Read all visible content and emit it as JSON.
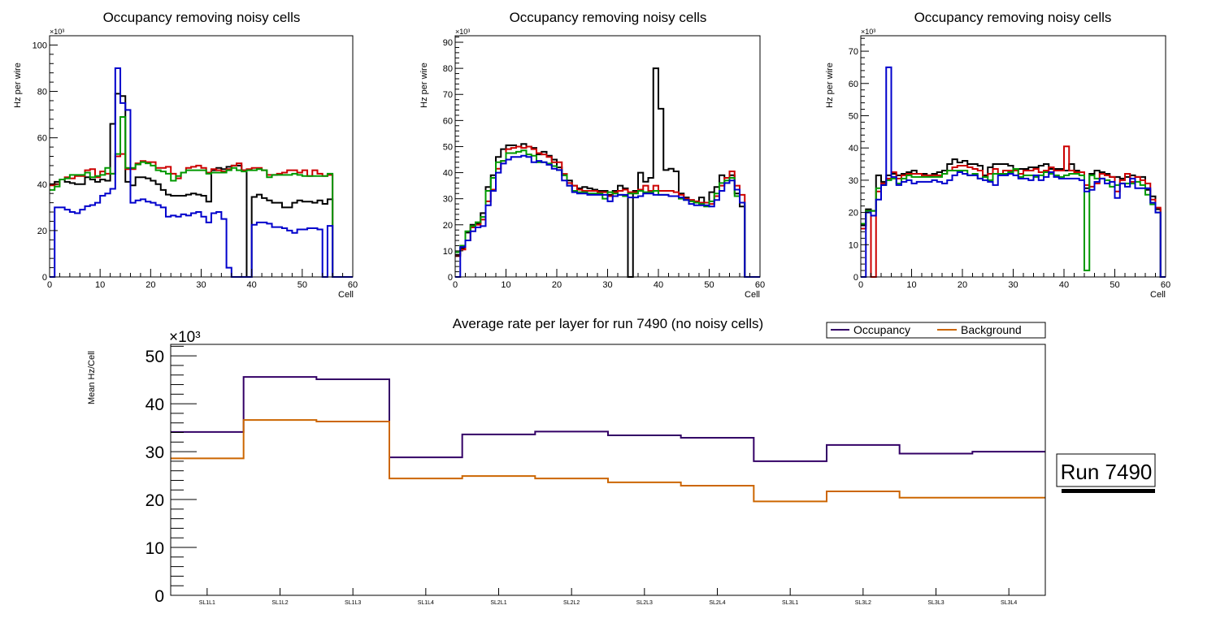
{
  "chart_data": [
    {
      "type": "histogram-step",
      "title": "Occupancy removing noisy cells",
      "xlabel": "Cell",
      "ylabel": "Hz per wire",
      "y_multiplier": "×10³",
      "xlim": [
        0,
        60
      ],
      "ylim": [
        0,
        104
      ],
      "xticks": [
        0,
        10,
        20,
        30,
        40,
        50,
        60
      ],
      "yticks": [
        0,
        20,
        40,
        60,
        80,
        100
      ],
      "series": [
        {
          "name": "black",
          "color": "#000000",
          "values": [
            40,
            41,
            42,
            41,
            40.5,
            40,
            40,
            43,
            42,
            41,
            42,
            41.5,
            66,
            79,
            78,
            41,
            39.5,
            43,
            43,
            42.5,
            41.5,
            40,
            37.5,
            35.5,
            35,
            35,
            35,
            35.5,
            36,
            35.5,
            35,
            32.5,
            46,
            47,
            46.5,
            47.5,
            48,
            48,
            46,
            0,
            34.5,
            35.5,
            34,
            33,
            32,
            32,
            30,
            30,
            32,
            33,
            32.5,
            32.5,
            32,
            33,
            31.5,
            33.5,
            0,
            0,
            0,
            0
          ]
        },
        {
          "name": "red",
          "color": "#cc0000",
          "values": [
            39.5,
            40,
            42,
            43,
            42.5,
            43.5,
            43.5,
            46,
            46.5,
            43,
            45.5,
            44.5,
            44.5,
            52,
            53,
            46.5,
            46.5,
            49,
            50,
            49.5,
            49.5,
            47,
            47,
            47.5,
            44.5,
            42.5,
            45,
            47,
            47.5,
            48,
            47,
            45,
            46.5,
            46,
            45.5,
            46.5,
            48,
            49,
            46,
            46.5,
            47,
            47,
            46,
            44,
            44,
            44.5,
            45,
            46,
            46,
            45,
            46,
            43.5,
            46,
            44.5,
            43.5,
            44,
            0,
            0,
            0,
            0
          ]
        },
        {
          "name": "green",
          "color": "#009900",
          "values": [
            37.5,
            39,
            42,
            42.5,
            44,
            44,
            44,
            45,
            43,
            43.5,
            44,
            47,
            44.5,
            53,
            69,
            47,
            47,
            48.5,
            49.5,
            49,
            48,
            46,
            45.5,
            44.5,
            41.5,
            43.5,
            45,
            46,
            46,
            46,
            46,
            44.5,
            45,
            45,
            45,
            46,
            47,
            46,
            45.5,
            46,
            46,
            46.5,
            46,
            43,
            44,
            44,
            44,
            44,
            44.5,
            44,
            43.5,
            43.5,
            43.5,
            43.5,
            43.5,
            44.5,
            0,
            0,
            0,
            0
          ]
        },
        {
          "name": "blue",
          "color": "#0000cc",
          "values": [
            0,
            30,
            30,
            29,
            28,
            27.5,
            29,
            30.5,
            31,
            32,
            35,
            36,
            38,
            90,
            75,
            72,
            32,
            33,
            33.5,
            32.5,
            32,
            31,
            30,
            26,
            26.5,
            26,
            27,
            26.5,
            27.5,
            28,
            26,
            23.5,
            27.5,
            28,
            25,
            4,
            0,
            0,
            0,
            0,
            22.5,
            23.5,
            23.5,
            23,
            21.5,
            21.5,
            21,
            20,
            19,
            20.5,
            20.5,
            21,
            21,
            20.5,
            0,
            22,
            0,
            0,
            0,
            0
          ]
        }
      ]
    },
    {
      "type": "histogram-step",
      "title": "Occupancy removing noisy cells",
      "xlabel": "Cell",
      "ylabel": "Hz per wire",
      "y_multiplier": "×10³",
      "xlim": [
        0,
        60
      ],
      "ylim": [
        0,
        92.5
      ],
      "xticks": [
        0,
        10,
        20,
        30,
        40,
        50,
        60
      ],
      "yticks": [
        0,
        10,
        20,
        30,
        40,
        50,
        60,
        70,
        80,
        90
      ],
      "series": [
        {
          "name": "black",
          "color": "#000000",
          "values": [
            8.5,
            11,
            17,
            20,
            20.5,
            24.5,
            34.5,
            39,
            46,
            49,
            50.5,
            50.5,
            50,
            51,
            50,
            49.5,
            47,
            48,
            46.5,
            45,
            42,
            39,
            37,
            35,
            34,
            34.5,
            34,
            33.5,
            33,
            33,
            31.5,
            33,
            35,
            34,
            0,
            33,
            40,
            36.5,
            38,
            80,
            64.5,
            41,
            41.5,
            40.5,
            32,
            30.5,
            29.5,
            28.5,
            30.5,
            28.5,
            32.5,
            34.5,
            39,
            38,
            39,
            32,
            27,
            0,
            0,
            0
          ]
        },
        {
          "name": "red",
          "color": "#cc0000",
          "values": [
            8,
            10.5,
            14,
            19,
            20,
            22,
            29,
            33.5,
            41.5,
            44.5,
            49,
            49.5,
            50,
            49.5,
            50,
            49,
            47.5,
            47,
            46,
            44,
            44,
            39.5,
            36,
            35,
            33.5,
            33,
            33,
            33,
            32.5,
            32.5,
            31,
            32.5,
            33,
            33.5,
            32.5,
            32.5,
            33.5,
            35,
            33,
            35,
            33,
            33,
            33,
            32.5,
            31.5,
            30,
            29.5,
            29,
            28.5,
            28.5,
            28,
            31,
            35,
            38,
            40.5,
            35,
            31.5,
            0,
            0,
            0
          ]
        },
        {
          "name": "green",
          "color": "#009900",
          "values": [
            9.5,
            12,
            17.5,
            19.5,
            21,
            23,
            33,
            38,
            44,
            44.5,
            47.5,
            47.5,
            48,
            48.5,
            47,
            46.5,
            44,
            44,
            43.5,
            42.5,
            41,
            39,
            35,
            33,
            32.5,
            32.5,
            32,
            32,
            32,
            30,
            32.5,
            32,
            31.5,
            31,
            32,
            32,
            33,
            32.5,
            32.5,
            33,
            31.5,
            31.5,
            31,
            31,
            30,
            29.5,
            29,
            28.5,
            28,
            27,
            29,
            32,
            36,
            37,
            38,
            31,
            28.5,
            0,
            0,
            0
          ]
        },
        {
          "name": "blue",
          "color": "#0000cc",
          "values": [
            0,
            11.5,
            14,
            17.5,
            19,
            19.5,
            27.5,
            33,
            40,
            43.5,
            45,
            46,
            46,
            46.5,
            46,
            44,
            44.5,
            44,
            43,
            41.5,
            41,
            37,
            35,
            32.5,
            32,
            32,
            31.5,
            31.5,
            31.5,
            31.5,
            29,
            31,
            31.5,
            31.5,
            30.5,
            30.5,
            31,
            32,
            32,
            31.5,
            31.5,
            31.5,
            31,
            31,
            30.5,
            29.5,
            28,
            27.5,
            27.5,
            27.5,
            27,
            29.5,
            33,
            36,
            37,
            33.5,
            28.5,
            0,
            0,
            0
          ]
        }
      ]
    },
    {
      "type": "histogram-step",
      "title": "Occupancy removing noisy cells",
      "xlabel": "Cell",
      "ylabel": "Hz per wire",
      "y_multiplier": "×10³",
      "xlim": [
        0,
        60
      ],
      "ylim": [
        0,
        74.8
      ],
      "xticks": [
        0,
        10,
        20,
        30,
        40,
        50,
        60
      ],
      "yticks": [
        0,
        10,
        20,
        30,
        40,
        50,
        60,
        70
      ],
      "series": [
        {
          "name": "black",
          "color": "#000000",
          "values": [
            16,
            21,
            20.5,
            31.5,
            29.5,
            31.5,
            32,
            31.5,
            32,
            32.5,
            33,
            32,
            32,
            31.5,
            32,
            32.5,
            33,
            35,
            36.5,
            35.5,
            36,
            35,
            35,
            34.5,
            31.5,
            34,
            35,
            35,
            35,
            34.5,
            33,
            33.5,
            33.5,
            34,
            34,
            34.5,
            35,
            33.5,
            33.5,
            33.5,
            33,
            35,
            33,
            32.5,
            27.5,
            32,
            33,
            32.5,
            32,
            31,
            31,
            30.5,
            31,
            31.5,
            31,
            31,
            27,
            25,
            21,
            0
          ]
        },
        {
          "name": "red",
          "color": "#cc0000",
          "values": [
            15,
            20.5,
            0,
            26.5,
            29,
            30.5,
            32.5,
            30.5,
            31.5,
            32,
            32,
            32,
            31.5,
            31.5,
            31.5,
            31.5,
            32,
            33,
            34,
            34.5,
            34.5,
            34,
            33.5,
            33,
            31,
            32,
            33.5,
            32,
            33,
            33,
            33,
            32,
            33,
            33,
            33.5,
            32.5,
            33,
            34,
            33,
            33,
            40.5,
            33,
            32.5,
            32.5,
            28.5,
            28,
            29,
            32,
            31.5,
            31,
            26.5,
            30,
            32,
            29.5,
            31,
            30,
            29,
            24,
            21.5,
            0
          ]
        },
        {
          "name": "green",
          "color": "#009900",
          "values": [
            16.5,
            20.5,
            20.5,
            27.5,
            28.5,
            30,
            30.5,
            29,
            30.5,
            31.5,
            31,
            31,
            31,
            31,
            31,
            31,
            32,
            33,
            33,
            33,
            33,
            31.5,
            32,
            30.5,
            31,
            30,
            32,
            32,
            32,
            32.5,
            33.5,
            31,
            31.5,
            31.5,
            31,
            31.5,
            32.5,
            32,
            31.5,
            31,
            31.5,
            32,
            32,
            31.5,
            2,
            31.5,
            30.5,
            30.5,
            30,
            28,
            28.5,
            29,
            29,
            29,
            29.5,
            28.5,
            25.5,
            22.5,
            20,
            0
          ]
        },
        {
          "name": "blue",
          "color": "#0000cc",
          "values": [
            0,
            20,
            19,
            24,
            28.5,
            65,
            31,
            28.5,
            29.5,
            30,
            29,
            29.5,
            29.5,
            29.5,
            30,
            29.5,
            29,
            30,
            31.5,
            32.5,
            32,
            31.5,
            31.5,
            30.5,
            30,
            29.5,
            28.5,
            31.5,
            31.5,
            32,
            31.5,
            30.5,
            30.5,
            30,
            31.5,
            30,
            31,
            32.5,
            31,
            30.5,
            30.5,
            30.5,
            30.5,
            30,
            26.5,
            27,
            29.5,
            30.5,
            29,
            29.5,
            24.5,
            29,
            28,
            30.5,
            27.5,
            27.5,
            27.5,
            23,
            20,
            0
          ]
        }
      ]
    },
    {
      "type": "histogram-step",
      "title": "Average rate per layer for run 7490 (no noisy cells)",
      "xlabel": "",
      "ylabel": "Mean Hz/Cell",
      "y_multiplier": "×10³",
      "ylim": [
        0,
        52.4
      ],
      "yticks": [
        0,
        10,
        20,
        30,
        40,
        50
      ],
      "categories": [
        "SL1L1",
        "SL1L2",
        "SL1L3",
        "SL1L4",
        "SL2L1",
        "SL2L2",
        "SL2L3",
        "SL2L4",
        "SL3L1",
        "SL3L2",
        "SL3L3",
        "SL3L4"
      ],
      "legend_position": "top-right",
      "series": [
        {
          "name": "Occupancy",
          "color": "#330066",
          "values": [
            34.1,
            45.6,
            45.1,
            28.8,
            33.6,
            34.2,
            33.4,
            32.9,
            28.0,
            31.4,
            29.6,
            30.0
          ]
        },
        {
          "name": "Background",
          "color": "#cc6600",
          "values": [
            28.6,
            36.6,
            36.3,
            24.4,
            24.9,
            24.4,
            23.6,
            22.9,
            19.6,
            21.7,
            20.4,
            20.4
          ]
        }
      ]
    }
  ],
  "annotation": {
    "run_label": "Run 7490"
  }
}
